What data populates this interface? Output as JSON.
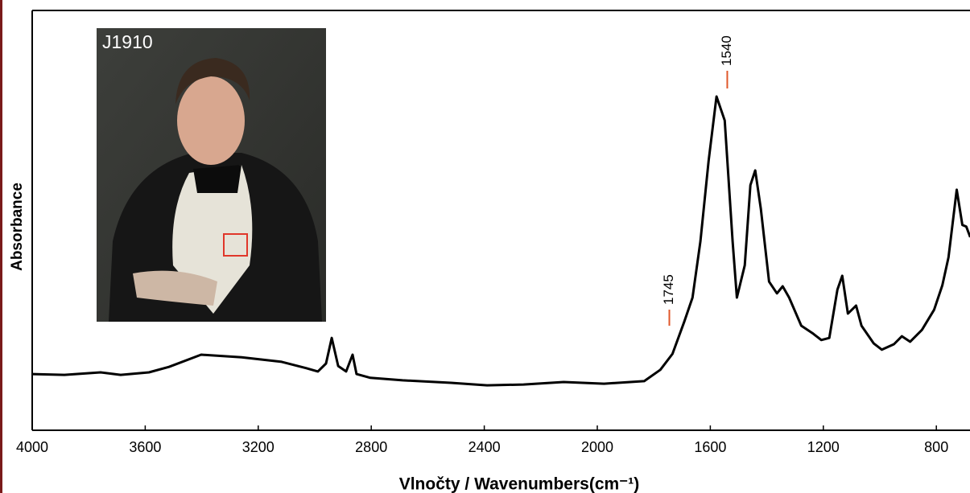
{
  "chart_data": {
    "type": "line",
    "xlabel": "Vlnočty / Wavenumbers(cm⁻¹)",
    "ylabel": "Absorbance",
    "color": "#000000",
    "xlim": [
      4000,
      680
    ],
    "ylim": [
      0,
      1
    ],
    "xticks": [
      4000,
      3600,
      3200,
      2800,
      2400,
      2000,
      1600,
      1200,
      800
    ],
    "x": [
      4000,
      3886,
      3758,
      3687,
      3587,
      3516,
      3402,
      3259,
      3117,
      3031,
      2989,
      2960,
      2940,
      2917,
      2889,
      2866,
      2852,
      2803,
      2689,
      2518,
      2390,
      2261,
      2119,
      1976,
      1834,
      1777,
      1734,
      1692,
      1663,
      1635,
      1606,
      1578,
      1549,
      1521,
      1506,
      1478,
      1458,
      1441,
      1421,
      1392,
      1364,
      1344,
      1321,
      1278,
      1236,
      1207,
      1179,
      1150,
      1133,
      1113,
      1084,
      1065,
      1022,
      993,
      950,
      922,
      893,
      851,
      808,
      779,
      757,
      728,
      708,
      694,
      680
    ],
    "values": [
      0.134,
      0.132,
      0.138,
      0.132,
      0.138,
      0.151,
      0.18,
      0.174,
      0.163,
      0.148,
      0.14,
      0.159,
      0.22,
      0.153,
      0.14,
      0.18,
      0.134,
      0.125,
      0.119,
      0.113,
      0.107,
      0.109,
      0.115,
      0.111,
      0.117,
      0.144,
      0.182,
      0.259,
      0.316,
      0.45,
      0.642,
      0.795,
      0.738,
      0.45,
      0.316,
      0.393,
      0.584,
      0.619,
      0.527,
      0.354,
      0.326,
      0.343,
      0.316,
      0.249,
      0.23,
      0.215,
      0.22,
      0.335,
      0.368,
      0.278,
      0.297,
      0.249,
      0.207,
      0.192,
      0.205,
      0.224,
      0.211,
      0.239,
      0.287,
      0.345,
      0.412,
      0.573,
      0.489,
      0.485,
      0.46
    ],
    "annotations": [
      {
        "x": 1745
      },
      {
        "x": 1540
      }
    ]
  },
  "inset": {
    "label": "J1910"
  }
}
